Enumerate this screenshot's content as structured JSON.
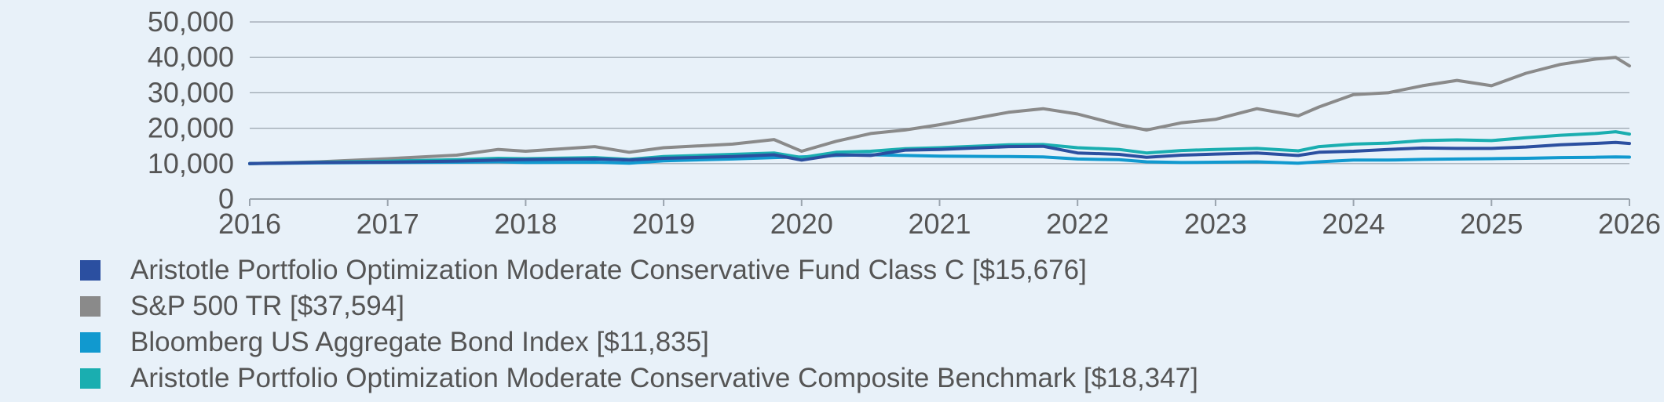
{
  "chart_data": {
    "type": "line",
    "title": "",
    "xlabel": "",
    "ylabel": "",
    "xlim": [
      2016,
      2026
    ],
    "ylim": [
      0,
      50000
    ],
    "grid": true,
    "legend_position": "bottom",
    "x_ticks": [
      "2016",
      "2017",
      "2018",
      "2019",
      "2020",
      "2021",
      "2022",
      "2023",
      "2024",
      "2025",
      "2026"
    ],
    "y_ticks": [
      "0",
      "10,000",
      "20,000",
      "30,000",
      "40,000",
      "50,000"
    ],
    "x": [
      2016.0,
      2016.5,
      2017.0,
      2017.5,
      2017.8,
      2018.0,
      2018.5,
      2018.75,
      2019.0,
      2019.5,
      2019.8,
      2020.0,
      2020.25,
      2020.5,
      2020.75,
      2021.0,
      2021.5,
      2021.75,
      2022.0,
      2022.3,
      2022.5,
      2022.75,
      2023.0,
      2023.3,
      2023.6,
      2023.75,
      2024.0,
      2024.25,
      2024.5,
      2024.75,
      2025.0,
      2025.25,
      2025.5,
      2025.75,
      2025.9,
      2026.0
    ],
    "series": [
      {
        "name": "Aristotle Portfolio Optimization Moderate Conservative Fund Class C [$15,676]",
        "color": "#2b4fa0",
        "values": [
          10000,
          10300,
          10400,
          10700,
          11000,
          11100,
          11300,
          11000,
          11500,
          12000,
          12500,
          11000,
          12500,
          12300,
          13800,
          14000,
          14800,
          14900,
          13000,
          12600,
          11800,
          12400,
          12700,
          13000,
          12300,
          13200,
          13500,
          14000,
          14400,
          14300,
          14300,
          14700,
          15300,
          15700,
          16000,
          15676
        ]
      },
      {
        "name": "S&P 500 TR [$37,594]",
        "color": "#8a8a8a",
        "values": [
          10000,
          10500,
          11400,
          12400,
          14000,
          13500,
          14800,
          13200,
          14500,
          15500,
          16800,
          13500,
          16300,
          18500,
          19500,
          21000,
          24500,
          25500,
          24000,
          21000,
          19500,
          21500,
          22500,
          25500,
          23500,
          26000,
          29500,
          30000,
          32000,
          33500,
          32000,
          35500,
          38000,
          39500,
          40000,
          37594
        ]
      },
      {
        "name": "Bloomberg US Aggregate Bond Index [$11,835]",
        "color": "#1199cf",
        "values": [
          10000,
          10200,
          10300,
          10400,
          10500,
          10300,
          10400,
          10100,
          10800,
          11300,
          11700,
          11900,
          12300,
          12500,
          12300,
          12100,
          12000,
          11900,
          11300,
          11100,
          10500,
          10300,
          10400,
          10500,
          10100,
          10500,
          11000,
          11000,
          11200,
          11300,
          11400,
          11500,
          11700,
          11800,
          11900,
          11835
        ]
      },
      {
        "name": "Aristotle Portfolio Optimization Moderate Conservative Composite Benchmark [$18,347]",
        "color": "#1aaeb0",
        "values": [
          10000,
          10400,
          10700,
          11100,
          11500,
          11400,
          11700,
          11200,
          12000,
          12600,
          13000,
          11700,
          13200,
          13500,
          14200,
          14500,
          15300,
          15400,
          14500,
          14000,
          13000,
          13700,
          14000,
          14300,
          13600,
          14800,
          15500,
          15800,
          16500,
          16700,
          16500,
          17300,
          18000,
          18500,
          19000,
          18347
        ]
      }
    ]
  }
}
